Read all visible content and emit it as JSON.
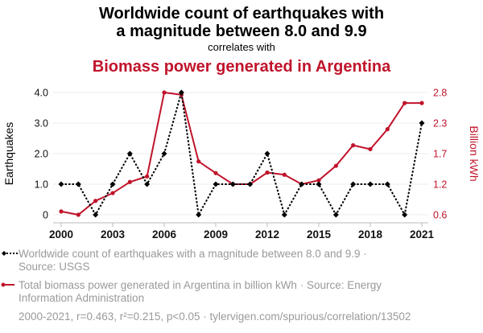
{
  "title_line1": "Worldwide count of earthquakes with",
  "title_line2": "a magnitude between 8.0 and 9.9",
  "correlates": "correlates with",
  "title2": "Biomass power generated in Argentina",
  "colors": {
    "series1": "#000000",
    "series2": "#c0142b",
    "grid": "#eeeeee"
  },
  "legend": {
    "s1_line1": "Worldwide count of earthquakes with a magnitude between 8.0 and 9.9 ·",
    "s1_line2": "Source: USGS",
    "s2_line1": "Total biomass power generated in Argentina in billion kWh · Source: Energy",
    "s2_line2": "Information Administration"
  },
  "footer": "2000-2021, r=0.463, r²=0.215, p<0.05 · tylervigen.com/spurious/correlation/13502",
  "chart_data": {
    "type": "line",
    "x": [
      2000,
      2001,
      2002,
      2003,
      2004,
      2005,
      2006,
      2007,
      2008,
      2009,
      2010,
      2011,
      2012,
      2013,
      2014,
      2015,
      2016,
      2017,
      2018,
      2019,
      2020,
      2021
    ],
    "xticks": [
      "2000",
      "2003",
      "2006",
      "2009",
      "2012",
      "2015",
      "2018",
      "2021"
    ],
    "ylabel": "Earthquakes",
    "y2label": "Billion kWh",
    "ylim": [
      0,
      4
    ],
    "y2lim": [
      0.6,
      2.8
    ],
    "yticks": [
      "0",
      "1.0",
      "2.0",
      "3.0",
      "4.0"
    ],
    "y2ticks": [
      "0.6",
      "1.2",
      "1.7",
      "2.3",
      "2.8"
    ],
    "grid": true,
    "legend_position": "bottom",
    "series": [
      {
        "name": "Worldwide count of earthquakes with a magnitude between 8.0 and 9.9",
        "axis": "left",
        "values": [
          1,
          1,
          0,
          1,
          2,
          1,
          2,
          4,
          0,
          1,
          1,
          1,
          2,
          0,
          1,
          1,
          0,
          1,
          1,
          1,
          0,
          3
        ]
      },
      {
        "name": "Total biomass power generated in Argentina in billion kWh",
        "axis": "right",
        "values": [
          0.66,
          0.6,
          0.85,
          0.99,
          1.19,
          1.29,
          2.8,
          2.76,
          1.56,
          1.35,
          1.15,
          1.15,
          1.36,
          1.32,
          1.15,
          1.22,
          1.48,
          1.85,
          1.78,
          2.14,
          2.61,
          2.61
        ]
      }
    ]
  }
}
